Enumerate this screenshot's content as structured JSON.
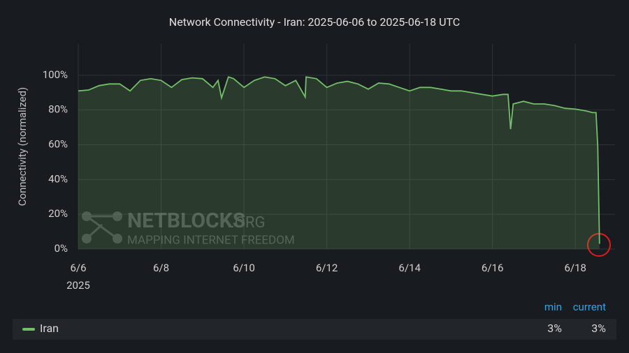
{
  "chart_data": {
    "type": "line",
    "title": "Network Connectivity - Iran: 2025-06-06 to 2025-06-18 UTC",
    "y_label": "Connectivity (normalized)",
    "x_year_label": "2025",
    "watermark": {
      "name": "NETBLOCKS",
      "suffix": ".ORG",
      "tagline": "MAPPING INTERNET FREEDOM"
    },
    "xlim": [
      "2025-06-06T00:00",
      "2025-06-18T23:00"
    ],
    "xticks": [
      {
        "value": "2025-06-06T00:00",
        "label": "6/6"
      },
      {
        "value": "2025-06-08T00:00",
        "label": "6/8"
      },
      {
        "value": "2025-06-10T00:00",
        "label": "6/10"
      },
      {
        "value": "2025-06-12T00:00",
        "label": "6/12"
      },
      {
        "value": "2025-06-14T00:00",
        "label": "6/14"
      },
      {
        "value": "2025-06-16T00:00",
        "label": "6/16"
      },
      {
        "value": "2025-06-18T00:00",
        "label": "6/18"
      }
    ],
    "ylim": [
      0,
      118
    ],
    "yticks": [
      {
        "value": 0,
        "label": "0%"
      },
      {
        "value": 20,
        "label": "20%"
      },
      {
        "value": 40,
        "label": "40%"
      },
      {
        "value": 60,
        "label": "60%"
      },
      {
        "value": 80,
        "label": "80%"
      },
      {
        "value": 100,
        "label": "100%"
      }
    ],
    "grid": true,
    "x": [
      "2025-06-06T00:00",
      "2025-06-06T06:00",
      "2025-06-06T12:00",
      "2025-06-06T18:00",
      "2025-06-07T00:00",
      "2025-06-07T06:00",
      "2025-06-07T12:00",
      "2025-06-07T18:00",
      "2025-06-08T00:00",
      "2025-06-08T06:00",
      "2025-06-08T12:00",
      "2025-06-08T18:00",
      "2025-06-09T00:00",
      "2025-06-09T06:00",
      "2025-06-09T09:00",
      "2025-06-09T11:00",
      "2025-06-09T15:00",
      "2025-06-09T18:00",
      "2025-06-10T00:00",
      "2025-06-10T06:00",
      "2025-06-10T12:00",
      "2025-06-10T18:00",
      "2025-06-11T00:00",
      "2025-06-11T06:00",
      "2025-06-11T11:30",
      "2025-06-11T12:00",
      "2025-06-11T18:00",
      "2025-06-12T00:00",
      "2025-06-12T06:00",
      "2025-06-12T12:00",
      "2025-06-12T18:00",
      "2025-06-13T00:00",
      "2025-06-13T06:00",
      "2025-06-13T12:00",
      "2025-06-13T18:00",
      "2025-06-14T00:00",
      "2025-06-14T06:00",
      "2025-06-14T12:00",
      "2025-06-14T18:00",
      "2025-06-15T00:00",
      "2025-06-15T06:00",
      "2025-06-15T12:00",
      "2025-06-15T18:00",
      "2025-06-16T00:00",
      "2025-06-16T06:00",
      "2025-06-16T09:00",
      "2025-06-16T10:30",
      "2025-06-16T12:00",
      "2025-06-16T18:00",
      "2025-06-17T00:00",
      "2025-06-17T06:00",
      "2025-06-17T12:00",
      "2025-06-17T18:00",
      "2025-06-18T00:00",
      "2025-06-18T06:00",
      "2025-06-18T10:00",
      "2025-06-18T12:00",
      "2025-06-18T13:00",
      "2025-06-18T14:00"
    ],
    "series": [
      {
        "name": "Iran",
        "color": "#73bf69",
        "min": "3%",
        "current": "3%",
        "values": [
          91,
          91.5,
          94,
          95,
          95,
          91,
          97,
          98,
          97,
          93,
          97.5,
          98.5,
          98,
          93,
          97,
          87,
          99,
          98,
          93,
          97,
          99,
          98,
          94,
          97,
          87.5,
          99,
          98,
          93,
          95.5,
          96.5,
          95,
          92,
          95.5,
          95,
          93,
          91,
          93,
          93,
          92,
          91,
          91,
          90,
          89,
          88,
          89,
          89,
          69,
          83.5,
          85,
          83.5,
          83.5,
          82.5,
          81,
          80.5,
          79.5,
          78.5,
          78.5,
          59,
          3
        ]
      }
    ],
    "legend_headers": {
      "min": "min",
      "current": "current"
    }
  }
}
